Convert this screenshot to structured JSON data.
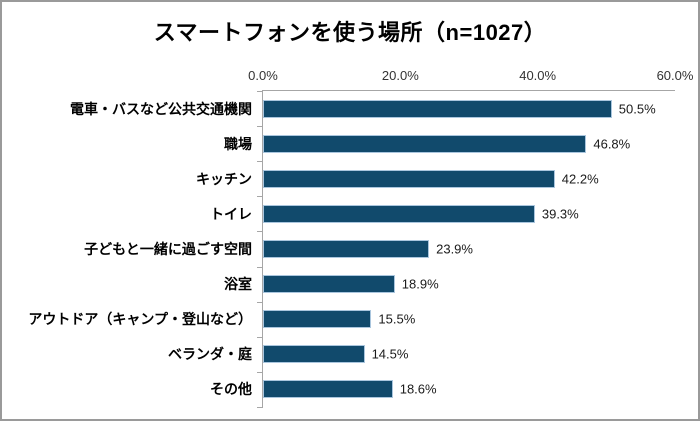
{
  "chart_data": {
    "type": "bar",
    "orientation": "horizontal",
    "title": "スマートフォンを使う場所（n=1027）",
    "categories": [
      "電車・バスなど公共交通機関",
      "職場",
      "キッチン",
      "トイレ",
      "子どもと一緒に過ごす空間",
      "浴室",
      "アウトドア（キャンプ・登山など）",
      "ベランダ・庭",
      "その他"
    ],
    "values": [
      50.5,
      46.8,
      42.2,
      39.3,
      23.9,
      18.9,
      15.5,
      14.5,
      18.6
    ],
    "value_labels": [
      "50.5%",
      "46.8%",
      "42.2%",
      "39.3%",
      "23.9%",
      "18.9%",
      "15.5%",
      "14.5%",
      "18.6%"
    ],
    "x_axis": {
      "position": "top",
      "max": 60,
      "ticks": [
        {
          "value": 0,
          "label": "0.0%"
        },
        {
          "value": 20,
          "label": "20.0%"
        },
        {
          "value": 40,
          "label": "40.0%"
        },
        {
          "value": 60,
          "label": "60.0%"
        }
      ]
    },
    "grid": false,
    "legend": false,
    "colors": {
      "bar_fill": "#114a6c",
      "bar_border": "#aac6de",
      "axis_line": "#a6a6a6",
      "frame_border": "#9a9a9a",
      "title_text": "#000000",
      "label_text": "#000000"
    }
  }
}
